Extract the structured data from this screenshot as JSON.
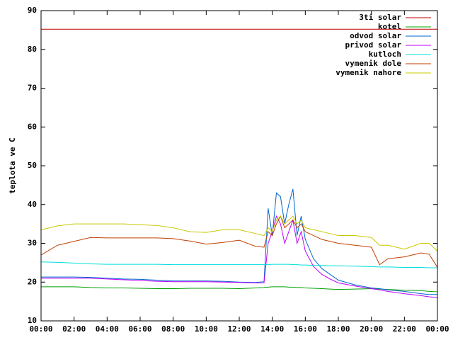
{
  "chart_data": {
    "type": "line",
    "ylabel": "teplota ve C",
    "x": [
      0,
      1,
      2,
      3,
      4,
      5,
      6,
      7,
      8,
      9,
      10,
      11,
      12,
      13,
      13.5,
      13.75,
      14,
      14.25,
      14.5,
      14.75,
      15,
      15.25,
      15.5,
      15.75,
      16,
      16.5,
      17,
      17.5,
      18,
      19,
      20,
      20.5,
      21,
      22,
      23,
      23.5,
      24
    ],
    "xlim": [
      0,
      24
    ],
    "xticks": [
      {
        "value": 0,
        "label": "00:00"
      },
      {
        "value": 2,
        "label": "02:00"
      },
      {
        "value": 4,
        "label": "04:00"
      },
      {
        "value": 6,
        "label": "06:00"
      },
      {
        "value": 8,
        "label": "08:00"
      },
      {
        "value": 10,
        "label": "10:00"
      },
      {
        "value": 12,
        "label": "12:00"
      },
      {
        "value": 14,
        "label": "14:00"
      },
      {
        "value": 16,
        "label": "16:00"
      },
      {
        "value": 18,
        "label": "18:00"
      },
      {
        "value": 20,
        "label": "20:00"
      },
      {
        "value": 22,
        "label": "22:00"
      },
      {
        "value": 24,
        "label": "00:00"
      }
    ],
    "ylim": [
      10,
      90
    ],
    "yticks": [
      10,
      20,
      30,
      40,
      50,
      60,
      70,
      80,
      90
    ],
    "grid": false,
    "legend": "top-right",
    "series": [
      {
        "name": "3ti solar",
        "color": "#c00000",
        "values": [
          85.2,
          85.2,
          85.2,
          85.2,
          85.2,
          85.2,
          85.2,
          85.2,
          85.2,
          85.2,
          85.2,
          85.2,
          85.2,
          85.2,
          85.2,
          85.2,
          85.2,
          85.2,
          85.2,
          85.2,
          85.2,
          85.2,
          85.2,
          85.2,
          85.2,
          85.2,
          85.2,
          85.2,
          85.2,
          85.2,
          85.2,
          85.2,
          85.2,
          85.2,
          85.2,
          85.2,
          85.2
        ]
      },
      {
        "name": "kotel",
        "color": "#00a000",
        "values": [
          18.8,
          18.8,
          18.8,
          18.6,
          18.5,
          18.5,
          18.4,
          18.3,
          18.3,
          18.4,
          18.4,
          18.4,
          18.3,
          18.5,
          18.6,
          18.7,
          18.8,
          18.8,
          18.8,
          18.8,
          18.7,
          18.7,
          18.6,
          18.6,
          18.5,
          18.4,
          18.3,
          18.2,
          18.1,
          18.2,
          18.3,
          18.2,
          18.1,
          17.9,
          17.8,
          17.6,
          17.5
        ]
      },
      {
        "name": "odvod solar",
        "color": "#0066cc",
        "values": [
          21.3,
          21.3,
          21.3,
          21.2,
          21,
          20.8,
          20.7,
          20.5,
          20.3,
          20.3,
          20.3,
          20.2,
          20,
          19.9,
          20.1,
          39,
          32,
          43,
          42,
          35,
          40,
          44,
          32,
          37,
          31,
          26,
          23.5,
          22,
          20.5,
          19.3,
          18.5,
          18.3,
          18,
          17.6,
          17,
          16.8,
          16.8
        ]
      },
      {
        "name": "privod solar",
        "color": "#c000ff",
        "values": [
          21,
          21,
          21,
          21,
          20.8,
          20.6,
          20.4,
          20.2,
          20.1,
          20.1,
          20.1,
          20,
          19.9,
          19.8,
          19.8,
          30,
          33,
          37,
          35,
          30,
          33,
          36,
          30,
          33,
          28,
          24,
          22,
          20.8,
          19.8,
          19,
          18.3,
          18,
          17.6,
          17,
          16.5,
          16.2,
          16
        ]
      },
      {
        "name": "kutloch",
        "color": "#00dddd",
        "values": [
          25.2,
          25.1,
          24.9,
          24.7,
          24.6,
          24.6,
          24.6,
          24.6,
          24.5,
          24.5,
          24.5,
          24.5,
          24.5,
          24.5,
          24.5,
          24.5,
          24.6,
          24.6,
          24.6,
          24.6,
          24.6,
          24.5,
          24.5,
          24.4,
          24.4,
          24.3,
          24.3,
          24.2,
          24.2,
          24.1,
          24.0,
          23.9,
          23.9,
          23.8,
          23.8,
          23.7,
          23.7
        ]
      },
      {
        "name": "vymenik dole",
        "color": "#c04000",
        "values": [
          27,
          29.5,
          30.5,
          31.5,
          31.4,
          31.4,
          31.4,
          31.4,
          31.2,
          30.6,
          29.8,
          30.2,
          30.8,
          29.2,
          29,
          33,
          32,
          35,
          37,
          34,
          35,
          36,
          34,
          35,
          33,
          32,
          31,
          30.5,
          30,
          29.5,
          29,
          24.5,
          26,
          26.5,
          27.5,
          27.2,
          23.8
        ]
      },
      {
        "name": "vymenik nahore",
        "color": "#c8c800",
        "values": [
          33.5,
          34.5,
          35,
          35,
          35,
          35,
          34.8,
          34.6,
          34,
          33,
          32.8,
          33.5,
          33.5,
          32.5,
          32,
          34,
          33,
          36,
          37,
          35,
          36,
          37,
          35,
          36,
          34,
          33.5,
          33,
          32.5,
          32,
          32,
          31.5,
          29.5,
          29.5,
          28.5,
          30,
          30,
          28
        ]
      }
    ]
  }
}
